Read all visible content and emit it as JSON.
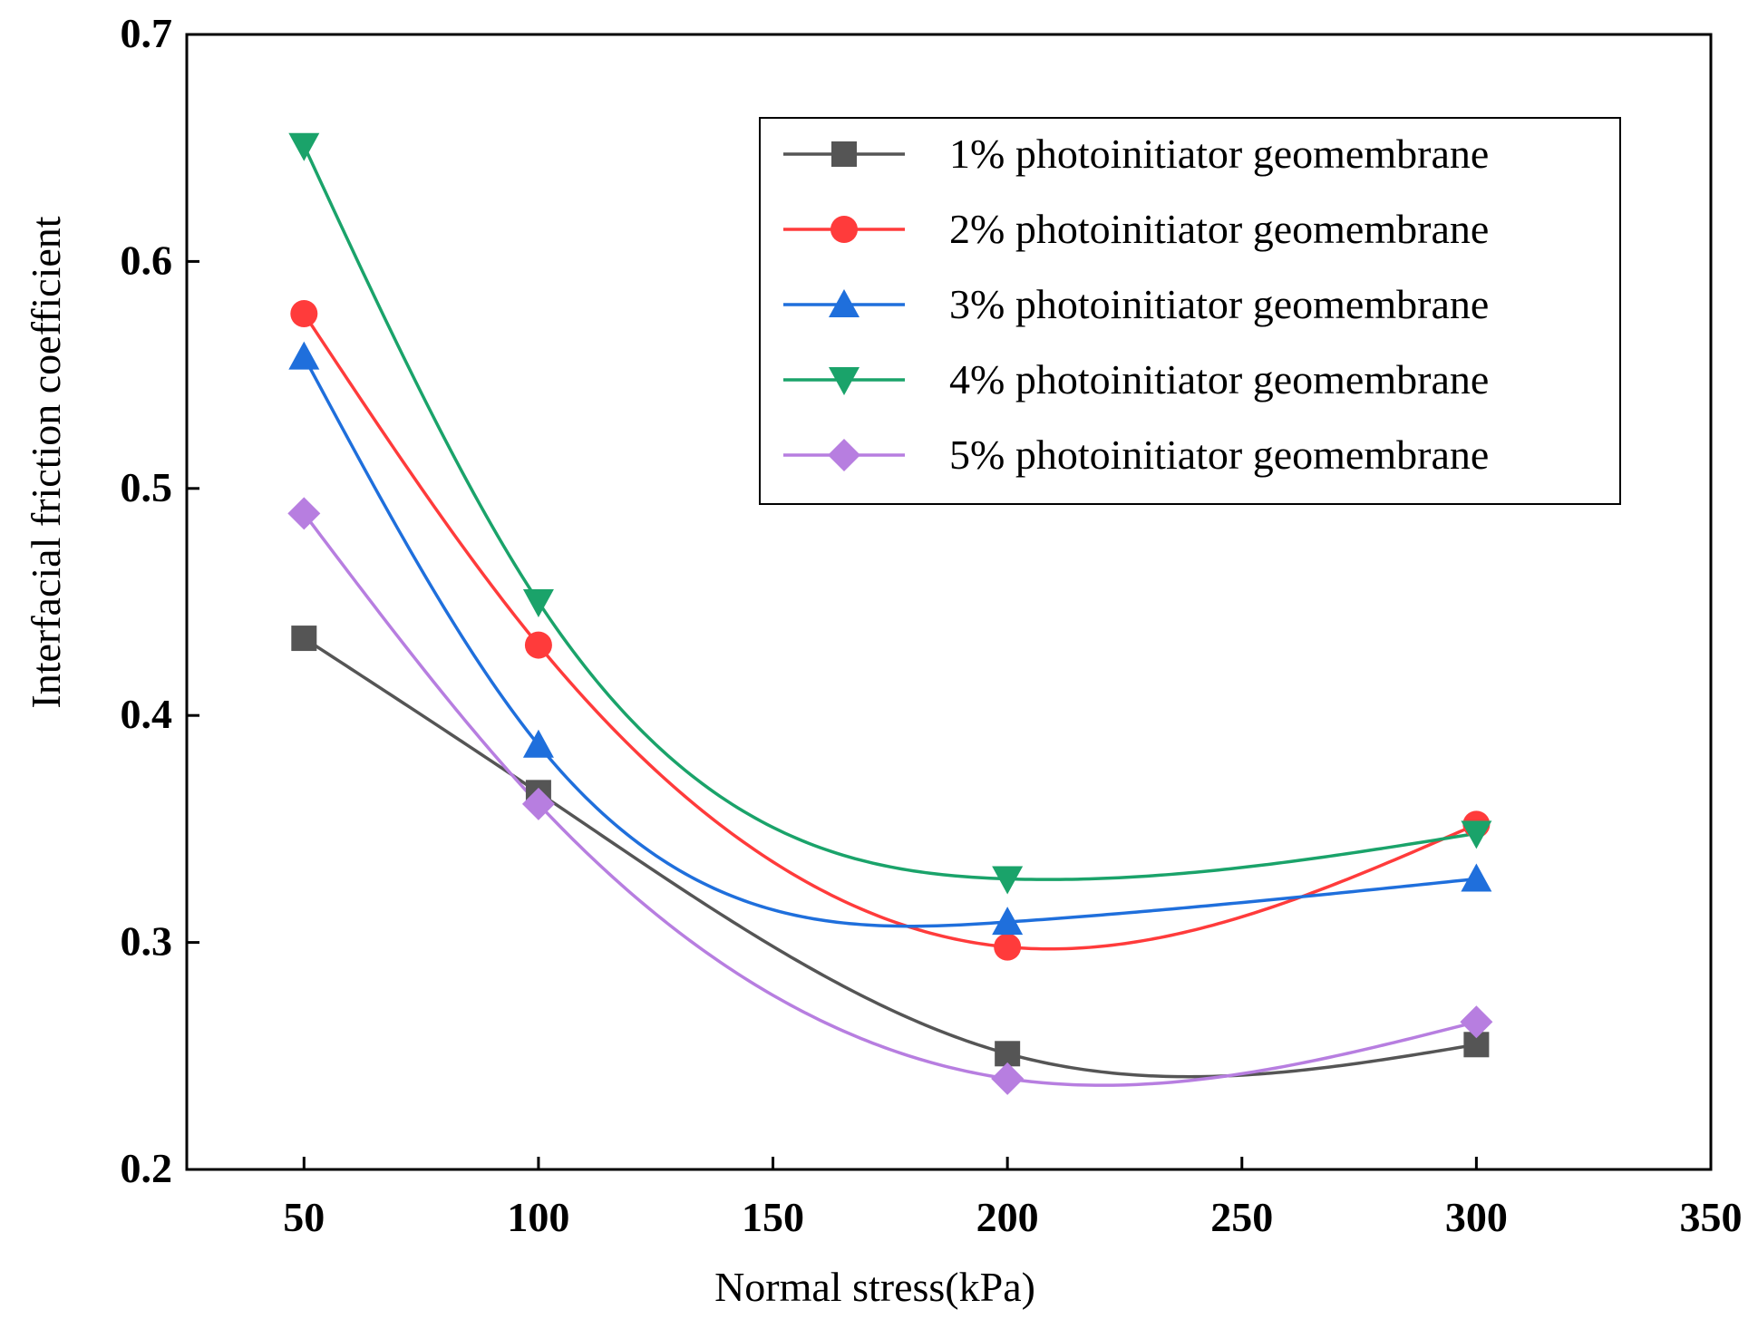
{
  "chart_data": {
    "type": "line",
    "title": "",
    "xlabel": "Normal stress(kPa)",
    "ylabel": "Interfacial friction coefficient",
    "xlim": [
      25,
      350
    ],
    "ylim": [
      0.2,
      0.7
    ],
    "x_ticks": [
      50,
      100,
      150,
      200,
      250,
      300,
      350
    ],
    "x_tick_labels": [
      "50",
      "100",
      "150",
      "200",
      "250",
      "300",
      "350"
    ],
    "y_ticks": [
      0.2,
      0.3,
      0.4,
      0.5,
      0.6,
      0.7
    ],
    "y_tick_labels": [
      "0.2",
      "0.3",
      "0.4",
      "0.5",
      "0.6",
      "0.7"
    ],
    "grid": false,
    "legend_position": "top-right",
    "x": [
      50,
      100,
      200,
      300
    ],
    "series": [
      {
        "name": "1% photoinitiator geomembrane",
        "color": "#555555",
        "marker": "square",
        "values": [
          0.434,
          0.366,
          0.251,
          0.255
        ]
      },
      {
        "name": "2% photoinitiator geomembrane",
        "color": "#ff3b3b",
        "marker": "circle",
        "values": [
          0.577,
          0.431,
          0.298,
          0.352
        ]
      },
      {
        "name": "3% photoinitiator geomembrane",
        "color": "#1f6fdc",
        "marker": "triangle-up",
        "values": [
          0.558,
          0.387,
          0.309,
          0.328
        ]
      },
      {
        "name": "4% photoinitiator geomembrane",
        "color": "#1aa36a",
        "marker": "triangle-down",
        "values": [
          0.651,
          0.45,
          0.328,
          0.348
        ]
      },
      {
        "name": "5% photoinitiator geomembrane",
        "color": "#b77ee0",
        "marker": "diamond",
        "values": [
          0.489,
          0.361,
          0.24,
          0.265
        ]
      }
    ]
  }
}
